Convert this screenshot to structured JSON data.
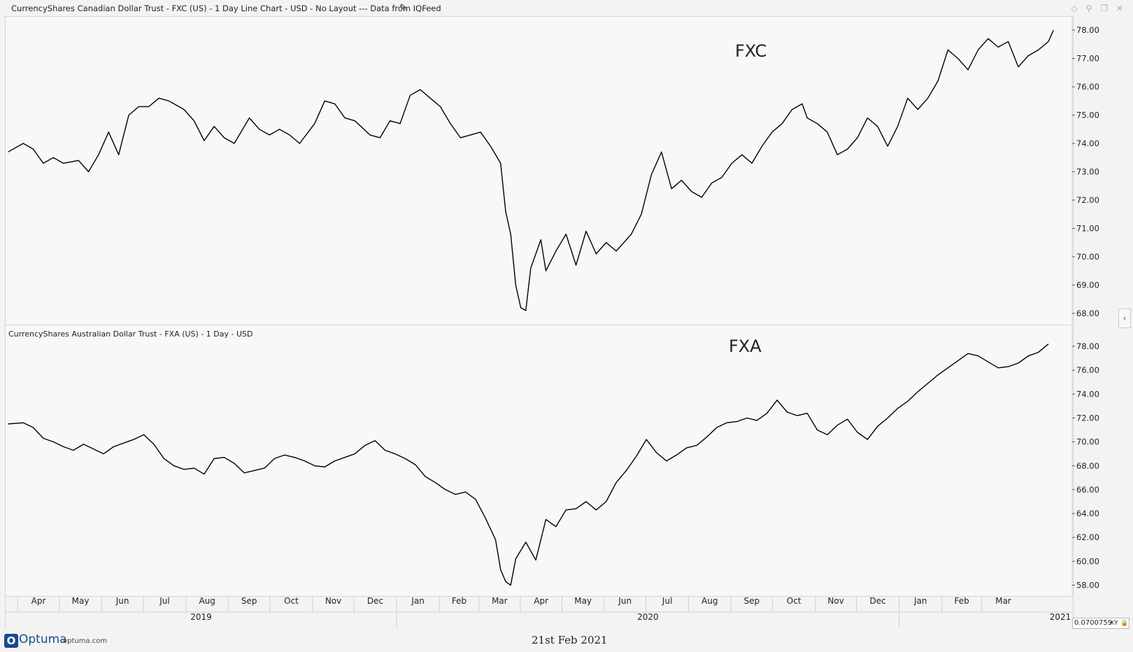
{
  "window": {
    "title": "CurrencyShares Canadian Dollar Trust - FXC (US) - 1 Day Line Chart - USD - No Layout --- Data from IQFeed"
  },
  "chart_data": [
    {
      "type": "line",
      "title": "CurrencyShares Canadian Dollar Trust - FXC (US) - 1 Day Line Chart - USD - No Layout --- Data from IQFeed",
      "annotation": "FXC",
      "color": "#000000",
      "ylim": [
        67.9,
        78.2
      ],
      "y_ticks": [
        "68.00",
        "69.00",
        "70.00",
        "71.00",
        "72.00",
        "73.00",
        "74.00",
        "75.00",
        "76.00",
        "77.00",
        "78.00"
      ],
      "series": [
        {
          "values": [
            [
              2019.23,
              73.7
            ],
            [
              2019.26,
              74.0
            ],
            [
              2019.28,
              73.8
            ],
            [
              2019.3,
              73.3
            ],
            [
              2019.32,
              73.5
            ],
            [
              2019.34,
              73.3
            ],
            [
              2019.37,
              73.4
            ],
            [
              2019.39,
              73.0
            ],
            [
              2019.41,
              73.6
            ],
            [
              2019.43,
              74.4
            ],
            [
              2019.45,
              73.6
            ],
            [
              2019.47,
              75.0
            ],
            [
              2019.49,
              75.3
            ],
            [
              2019.51,
              75.3
            ],
            [
              2019.53,
              75.6
            ],
            [
              2019.55,
              75.5
            ],
            [
              2019.58,
              75.2
            ],
            [
              2019.6,
              74.8
            ],
            [
              2019.62,
              74.1
            ],
            [
              2019.64,
              74.6
            ],
            [
              2019.66,
              74.2
            ],
            [
              2019.68,
              74.0
            ],
            [
              2019.71,
              74.9
            ],
            [
              2019.73,
              74.5
            ],
            [
              2019.75,
              74.3
            ],
            [
              2019.77,
              74.5
            ],
            [
              2019.79,
              74.3
            ],
            [
              2019.81,
              74.0
            ],
            [
              2019.84,
              74.7
            ],
            [
              2019.86,
              75.5
            ],
            [
              2019.88,
              75.4
            ],
            [
              2019.9,
              74.9
            ],
            [
              2019.92,
              74.8
            ],
            [
              2019.95,
              74.3
            ],
            [
              2019.97,
              74.2
            ],
            [
              2019.99,
              74.8
            ],
            [
              2020.01,
              74.7
            ],
            [
              2020.03,
              75.7
            ],
            [
              2020.05,
              75.9
            ],
            [
              2020.07,
              75.6
            ],
            [
              2020.09,
              75.3
            ],
            [
              2020.11,
              74.7
            ],
            [
              2020.13,
              74.2
            ],
            [
              2020.15,
              74.3
            ],
            [
              2020.17,
              74.4
            ],
            [
              2020.19,
              73.9
            ],
            [
              2020.21,
              73.3
            ],
            [
              2020.22,
              71.6
            ],
            [
              2020.23,
              70.8
            ],
            [
              2020.24,
              69.0
            ],
            [
              2020.25,
              68.2
            ],
            [
              2020.26,
              68.1
            ],
            [
              2020.27,
              69.6
            ],
            [
              2020.29,
              70.6
            ],
            [
              2020.3,
              69.5
            ],
            [
              2020.32,
              70.2
            ],
            [
              2020.34,
              70.8
            ],
            [
              2020.36,
              69.7
            ],
            [
              2020.38,
              70.9
            ],
            [
              2020.4,
              70.1
            ],
            [
              2020.42,
              70.5
            ],
            [
              2020.44,
              70.2
            ],
            [
              2020.47,
              70.8
            ],
            [
              2020.49,
              71.5
            ],
            [
              2020.51,
              72.9
            ],
            [
              2020.53,
              73.7
            ],
            [
              2020.55,
              72.4
            ],
            [
              2020.57,
              72.7
            ],
            [
              2020.59,
              72.3
            ],
            [
              2020.61,
              72.1
            ],
            [
              2020.63,
              72.6
            ],
            [
              2020.65,
              72.8
            ],
            [
              2020.67,
              73.3
            ],
            [
              2020.69,
              73.6
            ],
            [
              2020.71,
              73.3
            ],
            [
              2020.73,
              73.9
            ],
            [
              2020.75,
              74.4
            ],
            [
              2020.77,
              74.7
            ],
            [
              2020.79,
              75.2
            ],
            [
              2020.81,
              75.4
            ],
            [
              2020.82,
              74.9
            ],
            [
              2020.84,
              74.7
            ],
            [
              2020.86,
              74.4
            ],
            [
              2020.88,
              73.6
            ],
            [
              2020.9,
              73.8
            ],
            [
              2020.92,
              74.2
            ],
            [
              2020.94,
              74.9
            ],
            [
              2020.96,
              74.6
            ],
            [
              2020.98,
              73.9
            ],
            [
              2021.0,
              74.6
            ],
            [
              2021.02,
              75.6
            ],
            [
              2021.04,
              75.2
            ],
            [
              2021.06,
              75.6
            ],
            [
              2021.08,
              76.2
            ],
            [
              2021.1,
              77.3
            ],
            [
              2021.12,
              77.0
            ],
            [
              2021.14,
              76.6
            ],
            [
              2021.16,
              77.3
            ],
            [
              2021.18,
              77.7
            ],
            [
              2021.2,
              77.4
            ],
            [
              2021.22,
              77.6
            ],
            [
              2021.24,
              76.7
            ],
            [
              2021.26,
              77.1
            ],
            [
              2021.28,
              77.3
            ],
            [
              2021.3,
              77.6
            ],
            [
              2021.31,
              78.0
            ]
          ]
        }
      ]
    },
    {
      "type": "line",
      "title": "CurrencyShares Australian Dollar Trust - FXA (US) - 1 Day - USD",
      "annotation": "FXA",
      "color": "#000000",
      "ylim": [
        57.5,
        79.0
      ],
      "y_ticks": [
        "58.00",
        "60.00",
        "62.00",
        "64.00",
        "66.00",
        "68.00",
        "70.00",
        "72.00",
        "74.00",
        "76.00",
        "78.00"
      ],
      "series": [
        {
          "values": [
            [
              2019.23,
              71.5
            ],
            [
              2019.26,
              71.6
            ],
            [
              2019.28,
              71.2
            ],
            [
              2019.3,
              70.3
            ],
            [
              2019.32,
              70.0
            ],
            [
              2019.34,
              69.6
            ],
            [
              2019.36,
              69.3
            ],
            [
              2019.38,
              69.8
            ],
            [
              2019.4,
              69.4
            ],
            [
              2019.42,
              69.0
            ],
            [
              2019.44,
              69.6
            ],
            [
              2019.46,
              69.9
            ],
            [
              2019.48,
              70.2
            ],
            [
              2019.5,
              70.6
            ],
            [
              2019.52,
              69.8
            ],
            [
              2019.54,
              68.6
            ],
            [
              2019.56,
              68.0
            ],
            [
              2019.58,
              67.7
            ],
            [
              2019.6,
              67.8
            ],
            [
              2019.62,
              67.3
            ],
            [
              2019.64,
              68.6
            ],
            [
              2019.66,
              68.7
            ],
            [
              2019.68,
              68.2
            ],
            [
              2019.7,
              67.4
            ],
            [
              2019.72,
              67.6
            ],
            [
              2019.74,
              67.8
            ],
            [
              2019.76,
              68.6
            ],
            [
              2019.78,
              68.9
            ],
            [
              2019.8,
              68.7
            ],
            [
              2019.82,
              68.4
            ],
            [
              2019.84,
              68.0
            ],
            [
              2019.86,
              67.9
            ],
            [
              2019.88,
              68.4
            ],
            [
              2019.9,
              68.7
            ],
            [
              2019.92,
              69.0
            ],
            [
              2019.94,
              69.7
            ],
            [
              2019.96,
              70.1
            ],
            [
              2019.98,
              69.3
            ],
            [
              2020.0,
              69.0
            ],
            [
              2020.02,
              68.6
            ],
            [
              2020.04,
              68.1
            ],
            [
              2020.06,
              67.1
            ],
            [
              2020.08,
              66.6
            ],
            [
              2020.1,
              66.0
            ],
            [
              2020.12,
              65.6
            ],
            [
              2020.14,
              65.8
            ],
            [
              2020.16,
              65.2
            ],
            [
              2020.18,
              63.6
            ],
            [
              2020.2,
              61.8
            ],
            [
              2020.21,
              59.3
            ],
            [
              2020.22,
              58.3
            ],
            [
              2020.23,
              58.0
            ],
            [
              2020.24,
              60.2
            ],
            [
              2020.26,
              61.6
            ],
            [
              2020.28,
              60.1
            ],
            [
              2020.3,
              63.5
            ],
            [
              2020.32,
              62.9
            ],
            [
              2020.34,
              64.3
            ],
            [
              2020.36,
              64.4
            ],
            [
              2020.38,
              65.0
            ],
            [
              2020.4,
              64.3
            ],
            [
              2020.42,
              65.0
            ],
            [
              2020.44,
              66.6
            ],
            [
              2020.46,
              67.6
            ],
            [
              2020.48,
              68.8
            ],
            [
              2020.5,
              70.2
            ],
            [
              2020.52,
              69.1
            ],
            [
              2020.54,
              68.4
            ],
            [
              2020.56,
              68.9
            ],
            [
              2020.58,
              69.5
            ],
            [
              2020.6,
              69.7
            ],
            [
              2020.62,
              70.4
            ],
            [
              2020.64,
              71.2
            ],
            [
              2020.66,
              71.6
            ],
            [
              2020.68,
              71.7
            ],
            [
              2020.7,
              72.0
            ],
            [
              2020.72,
              71.8
            ],
            [
              2020.74,
              72.4
            ],
            [
              2020.76,
              73.5
            ],
            [
              2020.78,
              72.5
            ],
            [
              2020.8,
              72.2
            ],
            [
              2020.82,
              72.4
            ],
            [
              2020.84,
              71.0
            ],
            [
              2020.86,
              70.6
            ],
            [
              2020.88,
              71.4
            ],
            [
              2020.9,
              71.9
            ],
            [
              2020.92,
              70.8
            ],
            [
              2020.94,
              70.2
            ],
            [
              2020.96,
              71.3
            ],
            [
              2020.98,
              72.0
            ],
            [
              2021.0,
              72.8
            ],
            [
              2021.02,
              73.4
            ],
            [
              2021.04,
              74.2
            ],
            [
              2021.06,
              74.9
            ],
            [
              2021.08,
              75.6
            ],
            [
              2021.1,
              76.2
            ],
            [
              2021.12,
              76.8
            ],
            [
              2021.14,
              77.4
            ],
            [
              2021.16,
              77.2
            ],
            [
              2021.18,
              76.7
            ],
            [
              2021.2,
              76.2
            ],
            [
              2021.22,
              76.3
            ],
            [
              2021.24,
              76.6
            ],
            [
              2021.26,
              77.2
            ],
            [
              2021.28,
              77.5
            ],
            [
              2021.3,
              78.2
            ]
          ]
        }
      ]
    }
  ],
  "x_axis": {
    "months": [
      "Apr",
      "May",
      "Jun",
      "Jul",
      "Aug",
      "Sep",
      "Oct",
      "Nov",
      "Dec",
      "Jan",
      "Feb",
      "Mar",
      "Apr",
      "May",
      "Jun",
      "Jul",
      "Aug",
      "Sep",
      "Oct",
      "Nov",
      "Dec",
      "Jan",
      "Feb",
      "Mar"
    ],
    "month_starts": [
      2019.249,
      2019.332,
      2019.416,
      2019.499,
      2019.584,
      2019.668,
      2019.751,
      2019.836,
      2019.918,
      2020.003,
      2020.088,
      2020.167,
      2020.249,
      2020.332,
      2020.416,
      2020.499,
      2020.584,
      2020.668,
      2020.751,
      2020.836,
      2020.918,
      2021.003,
      2021.088,
      2021.167
    ],
    "years": [
      "2019",
      "2020",
      "2021"
    ],
    "year_starts": [
      2019.0,
      2020.003,
      2021.003
    ],
    "xlim": [
      2019.225,
      2021.24
    ]
  },
  "toolbar": {
    "xy_value": "0.0700759",
    "xy_label": "XY"
  },
  "footer": {
    "brand": "Optuma",
    "brand_url": "optuma.com",
    "date": "21st Feb 2021"
  },
  "pane2_title": "CurrencyShares Australian Dollar Trust - FXA (US) - 1 Day - USD"
}
